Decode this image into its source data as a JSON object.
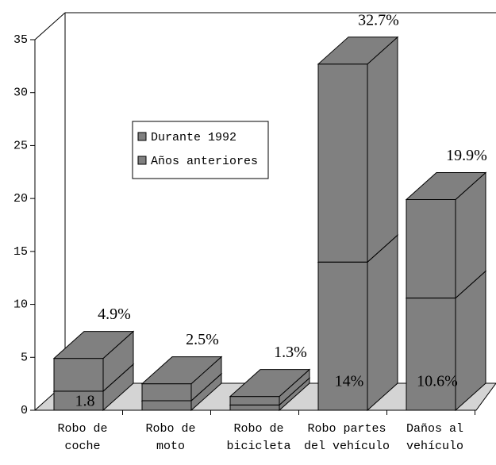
{
  "chart_data": {
    "type": "bar3d_stacked",
    "categories": [
      [
        "Robo de",
        "coche"
      ],
      [
        "Robo de",
        "moto"
      ],
      [
        "Robo de",
        "bicicleta"
      ],
      [
        "Robo partes",
        "del vehículo"
      ],
      [
        "Daños al",
        "vehículo"
      ]
    ],
    "series": [
      {
        "name": "Durante 1992",
        "color": "#808080",
        "values": [
          1.8,
          0.9,
          0.5,
          14,
          10.6
        ],
        "value_labels": [
          "1.8",
          null,
          null,
          "14%",
          "10.6%"
        ]
      },
      {
        "name": "Años anteriores",
        "color": "#808080",
        "values": [
          3.1,
          1.6,
          0.8,
          18.7,
          9.3
        ]
      }
    ],
    "totals": [
      4.9,
      2.5,
      1.3,
      32.7,
      19.9
    ],
    "total_labels": [
      "4.9%",
      "2.5%",
      "1.3%",
      "32.7%",
      "19.9%"
    ],
    "ylim": [
      0,
      35
    ],
    "yticks": [
      0,
      5,
      10,
      15,
      20,
      25,
      30,
      35
    ]
  }
}
